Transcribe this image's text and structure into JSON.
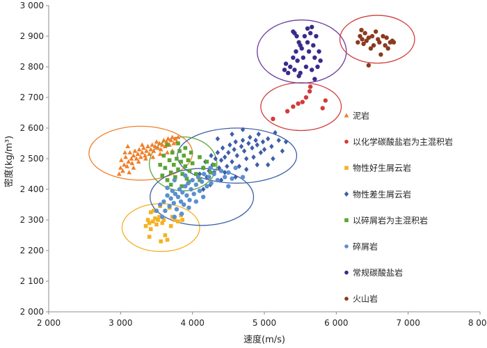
{
  "chart_data": {
    "type": "scatter",
    "xlabel": "速度(m/s)",
    "ylabel": "密度(kg/m³)",
    "xlim": [
      2000,
      8000
    ],
    "ylim": [
      2000,
      3000
    ],
    "x_ticks": [
      2000,
      3000,
      4000,
      5000,
      6000,
      7000,
      8000
    ],
    "x_tick_labels": [
      "2 000",
      "3 000",
      "4 000",
      "5 000",
      "6 000",
      "7 000",
      "8 000"
    ],
    "y_ticks": [
      2000,
      2100,
      2200,
      2300,
      2400,
      2500,
      2600,
      2700,
      2800,
      2900,
      3000
    ],
    "y_tick_labels": [
      "2 000",
      "2 100",
      "2 200",
      "2 300",
      "2 400",
      "2 500",
      "2 600",
      "2 700",
      "2 800",
      "2 900",
      "3 000"
    ],
    "grid": false,
    "legend_position": "right",
    "series": [
      {
        "name": "泥岩",
        "marker": "triangle",
        "color": "#f07f2a",
        "points": [
          [
            2980,
            2450
          ],
          [
            3000,
            2470
          ],
          [
            3010,
            2495
          ],
          [
            3030,
            2460
          ],
          [
            3050,
            2480
          ],
          [
            3070,
            2505
          ],
          [
            3090,
            2475
          ],
          [
            3110,
            2490
          ],
          [
            3130,
            2520
          ],
          [
            3150,
            2500
          ],
          [
            3160,
            2485
          ],
          [
            3180,
            2510
          ],
          [
            3200,
            2525
          ],
          [
            3220,
            2500
          ],
          [
            3240,
            2515
          ],
          [
            3260,
            2530
          ],
          [
            3280,
            2505
          ],
          [
            3300,
            2520
          ],
          [
            3320,
            2535
          ],
          [
            3340,
            2510
          ],
          [
            3360,
            2525
          ],
          [
            3380,
            2540
          ],
          [
            3400,
            2515
          ],
          [
            3420,
            2530
          ],
          [
            3440,
            2545
          ],
          [
            3460,
            2525
          ],
          [
            3480,
            2540
          ],
          [
            3500,
            2555
          ],
          [
            3520,
            2535
          ],
          [
            3540,
            2550
          ],
          [
            3560,
            2530
          ],
          [
            3580,
            2545
          ],
          [
            3600,
            2560
          ],
          [
            3620,
            2540
          ],
          [
            3640,
            2555
          ],
          [
            3660,
            2565
          ],
          [
            3680,
            2545
          ],
          [
            3700,
            2560
          ],
          [
            3720,
            2570
          ],
          [
            3740,
            2550
          ],
          [
            3760,
            2565
          ],
          [
            3780,
            2555
          ],
          [
            3800,
            2570
          ],
          [
            3060,
            2520
          ],
          [
            3120,
            2455
          ],
          [
            3250,
            2490
          ],
          [
            3350,
            2500
          ],
          [
            3450,
            2505
          ],
          [
            3550,
            2515
          ],
          [
            3650,
            2520
          ],
          [
            3720,
            2525
          ],
          [
            3100,
            2540
          ],
          [
            3180,
            2470
          ],
          [
            3300,
            2545
          ]
        ]
      },
      {
        "name": "以化学碳酸盐岩为主混积岩",
        "marker": "circle",
        "color": "#d23b3b",
        "points": [
          [
            5120,
            2630
          ],
          [
            5320,
            2655
          ],
          [
            5400,
            2670
          ],
          [
            5470,
            2680
          ],
          [
            5530,
            2685
          ],
          [
            5580,
            2700
          ],
          [
            5630,
            2720
          ],
          [
            5640,
            2735
          ],
          [
            5810,
            2665
          ],
          [
            5850,
            2690
          ]
        ]
      },
      {
        "name": "物性好生屑云岩",
        "marker": "square",
        "color": "#f4b223",
        "points": [
          [
            3350,
            2280
          ],
          [
            3380,
            2300
          ],
          [
            3400,
            2290
          ],
          [
            3420,
            2270
          ],
          [
            3450,
            2295
          ],
          [
            3480,
            2305
          ],
          [
            3500,
            2285
          ],
          [
            3520,
            2300
          ],
          [
            3540,
            2310
          ],
          [
            3560,
            2230
          ],
          [
            3580,
            2290
          ],
          [
            3600,
            2300
          ],
          [
            3620,
            2250
          ],
          [
            3650,
            2235
          ],
          [
            3680,
            2340
          ],
          [
            3700,
            2280
          ],
          [
            3720,
            2310
          ],
          [
            3750,
            2300
          ],
          [
            3800,
            2295
          ],
          [
            3840,
            2315
          ],
          [
            3860,
            2300
          ],
          [
            3550,
            2345
          ],
          [
            3460,
            2330
          ],
          [
            3400,
            2245
          ],
          [
            3420,
            2325
          ]
        ]
      },
      {
        "name": "物性差生屑云岩",
        "marker": "diamond",
        "color": "#3d5fa8",
        "points": [
          [
            4100,
            2450
          ],
          [
            4150,
            2470
          ],
          [
            4180,
            2490
          ],
          [
            4200,
            2440
          ],
          [
            4230,
            2460
          ],
          [
            4260,
            2510
          ],
          [
            4280,
            2480
          ],
          [
            4300,
            2455
          ],
          [
            4320,
            2500
          ],
          [
            4350,
            2520
          ],
          [
            4370,
            2470
          ],
          [
            4400,
            2495
          ],
          [
            4420,
            2535
          ],
          [
            4450,
            2505
          ],
          [
            4480,
            2475
          ],
          [
            4500,
            2520
          ],
          [
            4520,
            2545
          ],
          [
            4550,
            2490
          ],
          [
            4580,
            2530
          ],
          [
            4600,
            2555
          ],
          [
            4620,
            2510
          ],
          [
            4650,
            2475
          ],
          [
            4680,
            2540
          ],
          [
            4700,
            2560
          ],
          [
            4720,
            2525
          ],
          [
            4750,
            2500
          ],
          [
            4780,
            2550
          ],
          [
            4800,
            2570
          ],
          [
            4830,
            2535
          ],
          [
            4850,
            2505
          ],
          [
            4880,
            2560
          ],
          [
            4900,
            2545
          ],
          [
            4920,
            2580
          ],
          [
            4950,
            2520
          ],
          [
            4980,
            2555
          ],
          [
            5000,
            2530
          ],
          [
            5050,
            2565
          ],
          [
            5100,
            2540
          ],
          [
            5150,
            2585
          ],
          [
            5200,
            2560
          ],
          [
            5250,
            2525
          ],
          [
            5300,
            2555
          ],
          [
            5120,
            2500
          ],
          [
            4450,
            2455
          ],
          [
            4600,
            2440
          ],
          [
            4750,
            2465
          ],
          [
            4900,
            2480
          ],
          [
            4350,
            2565
          ],
          [
            4550,
            2580
          ],
          [
            4700,
            2595
          ],
          [
            5050,
            2480
          ],
          [
            4250,
            2415
          ],
          [
            4150,
            2400
          ],
          [
            4400,
            2430
          ]
        ]
      },
      {
        "name": "以碎屑岩为主混积岩",
        "marker": "square",
        "color": "#5aa632",
        "points": [
          [
            3550,
            2480
          ],
          [
            3580,
            2445
          ],
          [
            3600,
            2510
          ],
          [
            3620,
            2470
          ],
          [
            3650,
            2430
          ],
          [
            3680,
            2495
          ],
          [
            3700,
            2455
          ],
          [
            3720,
            2520
          ],
          [
            3740,
            2480
          ],
          [
            3760,
            2440
          ],
          [
            3780,
            2500
          ],
          [
            3800,
            2465
          ],
          [
            3820,
            2525
          ],
          [
            3840,
            2490
          ],
          [
            3860,
            2450
          ],
          [
            3880,
            2510
          ],
          [
            3900,
            2475
          ],
          [
            3920,
            2435
          ],
          [
            3940,
            2495
          ],
          [
            3960,
            2460
          ],
          [
            3980,
            2520
          ],
          [
            4000,
            2485
          ],
          [
            4050,
            2450
          ],
          [
            4100,
            2505
          ],
          [
            4150,
            2470
          ],
          [
            4200,
            2490
          ],
          [
            4250,
            2455
          ],
          [
            4300,
            2480
          ],
          [
            3650,
            2545
          ],
          [
            3800,
            2550
          ],
          [
            3900,
            2535
          ],
          [
            3700,
            2415
          ],
          [
            3850,
            2410
          ],
          [
            3950,
            2425
          ],
          [
            4100,
            2430
          ]
        ]
      },
      {
        "name": "碎屑岩",
        "marker": "circle",
        "color": "#5b8fd0",
        "points": [
          [
            3500,
            2330
          ],
          [
            3550,
            2350
          ],
          [
            3600,
            2360
          ],
          [
            3620,
            2330
          ],
          [
            3650,
            2380
          ],
          [
            3680,
            2345
          ],
          [
            3700,
            2370
          ],
          [
            3720,
            2395
          ],
          [
            3740,
            2355
          ],
          [
            3760,
            2385
          ],
          [
            3780,
            2335
          ],
          [
            3800,
            2375
          ],
          [
            3820,
            2400
          ],
          [
            3840,
            2360
          ],
          [
            3860,
            2390
          ],
          [
            3880,
            2350
          ],
          [
            3900,
            2410
          ],
          [
            3920,
            2380
          ],
          [
            3940,
            2420
          ],
          [
            3960,
            2365
          ],
          [
            3980,
            2400
          ],
          [
            4000,
            2430
          ],
          [
            4020,
            2385
          ],
          [
            4050,
            2415
          ],
          [
            4080,
            2440
          ],
          [
            4100,
            2395
          ],
          [
            4130,
            2425
          ],
          [
            4160,
            2450
          ],
          [
            4200,
            2410
          ],
          [
            4230,
            2440
          ],
          [
            4260,
            2420
          ],
          [
            4300,
            2450
          ],
          [
            4350,
            2430
          ],
          [
            4400,
            2460
          ],
          [
            4450,
            2440
          ],
          [
            4500,
            2455
          ],
          [
            4550,
            2435
          ],
          [
            4600,
            2470
          ],
          [
            3750,
            2310
          ],
          [
            3850,
            2320
          ],
          [
            3950,
            2340
          ],
          [
            4050,
            2360
          ],
          [
            4150,
            2375
          ],
          [
            3650,
            2405
          ],
          [
            3750,
            2430
          ],
          [
            4250,
            2470
          ],
          [
            3900,
            2445
          ],
          [
            4500,
            2410
          ],
          [
            3580,
            2310
          ],
          [
            4700,
            2440
          ]
        ]
      },
      {
        "name": "常规碳酸盐岩",
        "marker": "circle",
        "color": "#3b2a8c",
        "points": [
          [
            5280,
            2790
          ],
          [
            5300,
            2810
          ],
          [
            5330,
            2780
          ],
          [
            5360,
            2800
          ],
          [
            5400,
            2830
          ],
          [
            5420,
            2790
          ],
          [
            5440,
            2850
          ],
          [
            5460,
            2820
          ],
          [
            5480,
            2770
          ],
          [
            5500,
            2870
          ],
          [
            5420,
            2910
          ],
          [
            5450,
            2900
          ],
          [
            5480,
            2880
          ],
          [
            5520,
            2860
          ],
          [
            5540,
            2830
          ],
          [
            5560,
            2900
          ],
          [
            5580,
            2800
          ],
          [
            5600,
            2880
          ],
          [
            5620,
            2850
          ],
          [
            5640,
            2910
          ],
          [
            5660,
            2790
          ],
          [
            5680,
            2870
          ],
          [
            5700,
            2830
          ],
          [
            5720,
            2900
          ],
          [
            5740,
            2800
          ],
          [
            5760,
            2850
          ],
          [
            5780,
            2820
          ],
          [
            5400,
            2915
          ],
          [
            5600,
            2925
          ],
          [
            5700,
            2760
          ],
          [
            5500,
            2780
          ],
          [
            5660,
            2930
          ]
        ]
      },
      {
        "name": "火山岩",
        "marker": "circle",
        "color": "#8b3a1e",
        "points": [
          [
            6300,
            2880
          ],
          [
            6330,
            2900
          ],
          [
            6360,
            2890
          ],
          [
            6380,
            2875
          ],
          [
            6400,
            2910
          ],
          [
            6420,
            2885
          ],
          [
            6450,
            2895
          ],
          [
            6480,
            2860
          ],
          [
            6500,
            2900
          ],
          [
            6520,
            2870
          ],
          [
            6550,
            2915
          ],
          [
            6580,
            2890
          ],
          [
            6600,
            2880
          ],
          [
            6620,
            2840
          ],
          [
            6650,
            2900
          ],
          [
            6680,
            2870
          ],
          [
            6700,
            2895
          ],
          [
            6720,
            2860
          ],
          [
            6750,
            2880
          ],
          [
            6780,
            2885
          ],
          [
            6800,
            2880
          ],
          [
            6450,
            2805
          ],
          [
            6350,
            2920
          ]
        ]
      }
    ],
    "ellipses": [
      {
        "cx": 3280,
        "cy": 2518,
        "rx": 720,
        "ry": 88,
        "color": "#f07f2a"
      },
      {
        "cx": 5510,
        "cy": 2670,
        "rx": 560,
        "ry": 78,
        "color": "#d23b3b"
      },
      {
        "cx": 3560,
        "cy": 2275,
        "rx": 540,
        "ry": 78,
        "color": "#f4b223"
      },
      {
        "cx": 4620,
        "cy": 2510,
        "rx": 830,
        "ry": 90,
        "color": "#3d5fa8"
      },
      {
        "cx": 3870,
        "cy": 2483,
        "rx": 470,
        "ry": 88,
        "color": "#5aa632"
      },
      {
        "cx": 4130,
        "cy": 2375,
        "rx": 720,
        "ry": 93,
        "color": "#3d5fa8"
      },
      {
        "cx": 5520,
        "cy": 2850,
        "rx": 620,
        "ry": 103,
        "color": "#6a3a9e"
      },
      {
        "cx": 6570,
        "cy": 2890,
        "rx": 520,
        "ry": 78,
        "color": "#d23b3b"
      }
    ]
  }
}
